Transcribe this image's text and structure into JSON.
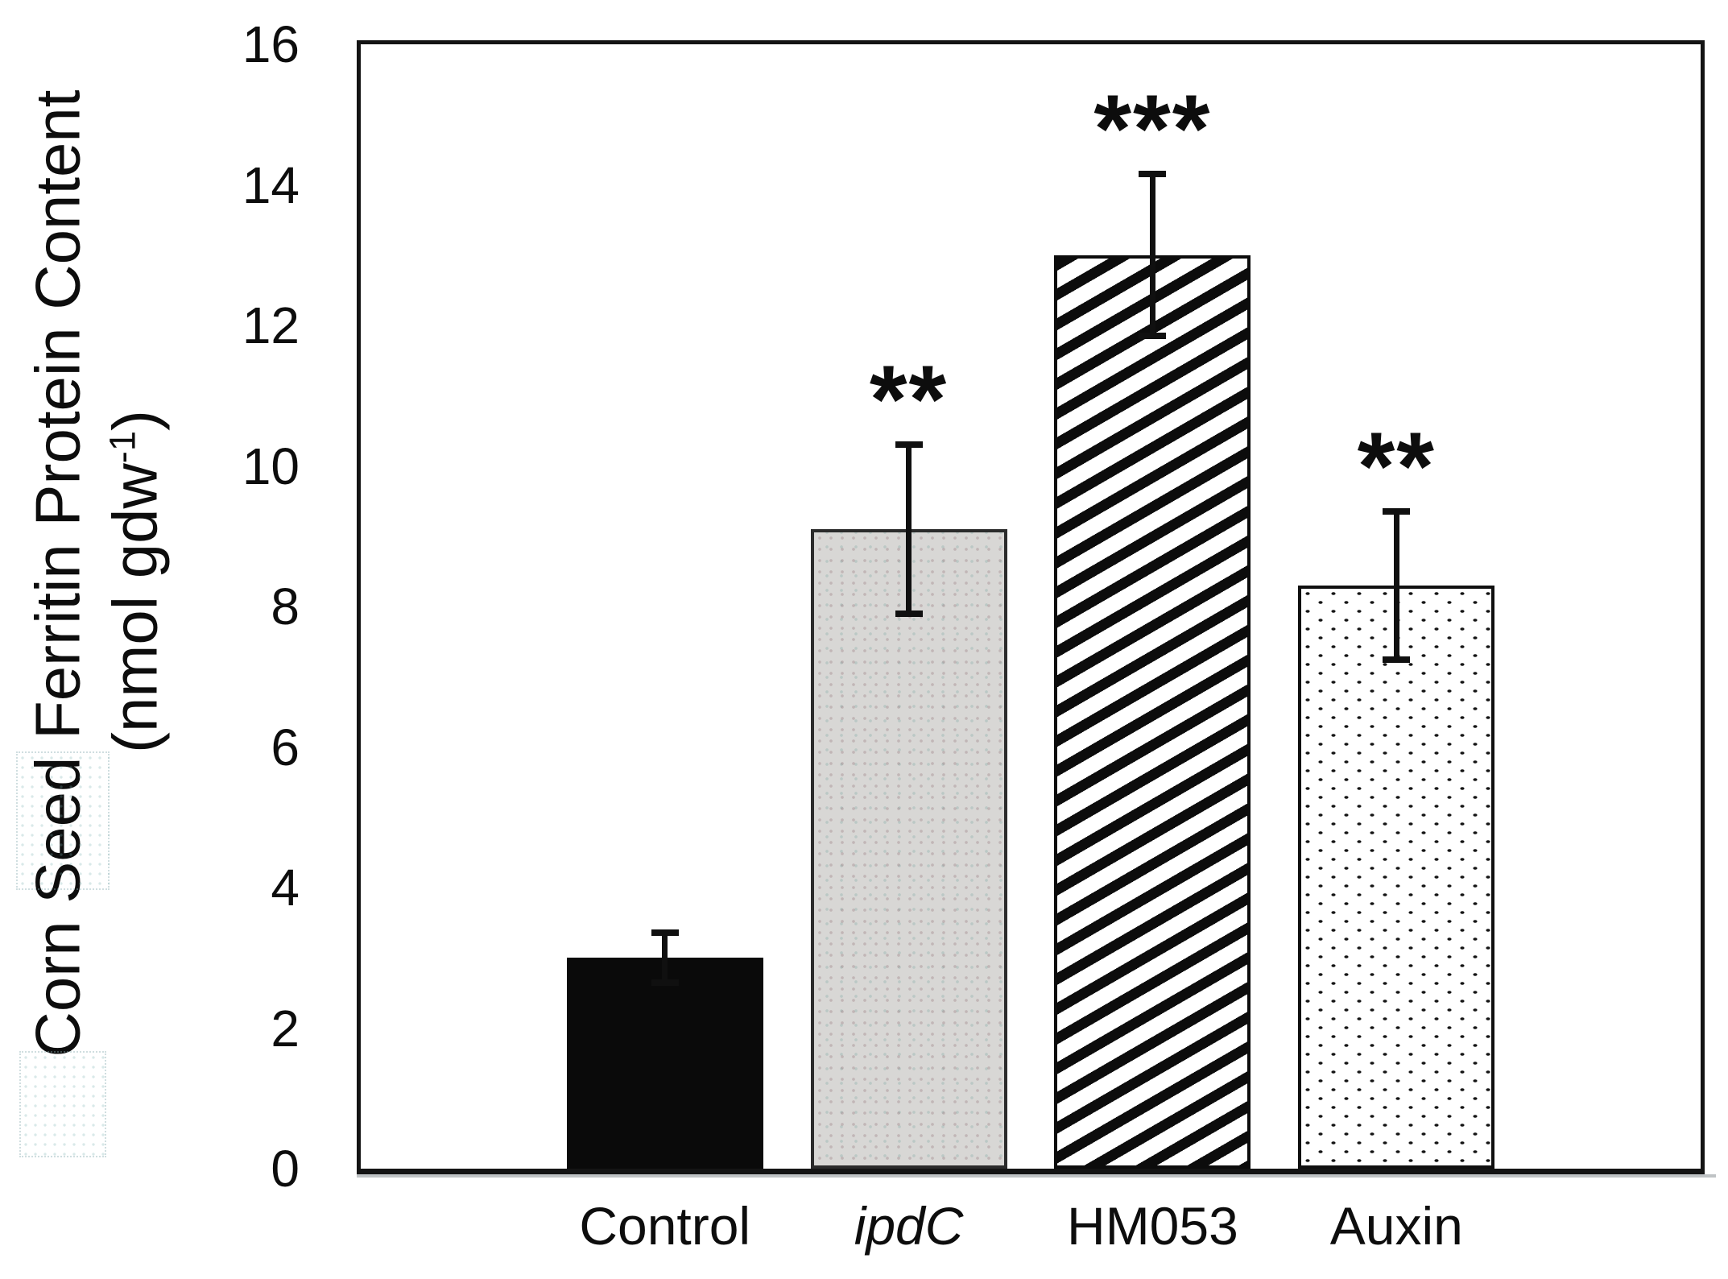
{
  "figure": {
    "ylabel_line1": "Corn Seed Ferritin Protein Content",
    "ylabel_line2_prefix": "(nmol gdw",
    "ylabel_line2_sup": "-1",
    "ylabel_line2_suffix": ")"
  },
  "chart_data": {
    "type": "bar",
    "title": "",
    "xlabel": "",
    "ylabel": "Corn Seed Ferritin Protein Content (nmol gdw-1)",
    "categories": [
      "Control",
      "ipdC",
      "HM053",
      "Auxin"
    ],
    "values": [
      3.0,
      9.1,
      13.0,
      8.3
    ],
    "errors": [
      0.4,
      1.25,
      1.2,
      1.1
    ],
    "significance": [
      "",
      "**",
      "***",
      "**"
    ],
    "italic_categories": [
      false,
      true,
      false,
      false
    ],
    "bar_styles": [
      "solid-black",
      "solid-gray",
      "diagonal-stripes",
      "dots"
    ],
    "ylim": [
      0,
      16
    ],
    "yticks": [
      0,
      2,
      4,
      6,
      8,
      10,
      12,
      14,
      16
    ],
    "grid": false,
    "legend": "none",
    "colors": {
      "black_fill": "#0a0a0a",
      "gray_fill": "#d8d7d5",
      "hatch_color": "#0c0c0c",
      "outline": "#141414",
      "text": "#0d0d0d"
    }
  }
}
